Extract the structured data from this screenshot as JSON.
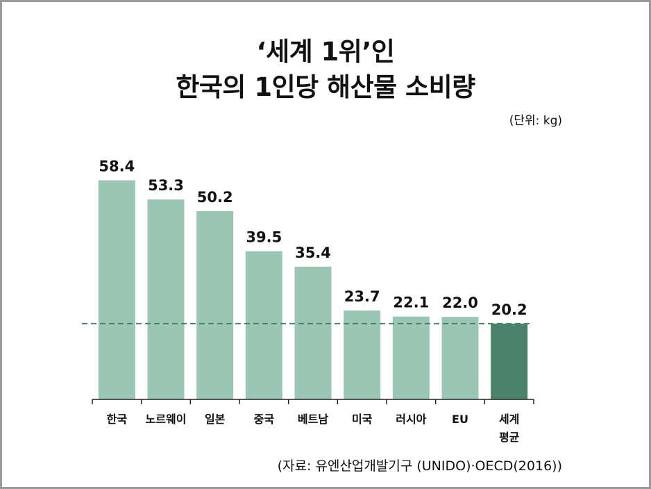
{
  "title_line1": "‘세계 1위’인",
  "title_line2": "한국의 1인당 해산물 소비량",
  "unit": "(단위: kg)",
  "source": "(자료: 유엔산업개발기구 (UNIDO)·OECD(2016))",
  "colors": {
    "bar": "#9bc6b5",
    "highlight_bar": "#4a826c",
    "reference_line": "#4a826c",
    "axis": "#222222"
  },
  "chart_data": {
    "type": "bar",
    "title": "‘세계 1위’인 한국의 1인당 해산물 소비량",
    "ylabel": "",
    "xlabel": "",
    "unit": "kg",
    "categories": [
      "한국",
      "노르웨이",
      "일본",
      "중국",
      "베트남",
      "미국",
      "러시아",
      "EU",
      "세계\n평균"
    ],
    "values": [
      58.4,
      53.3,
      50.2,
      39.5,
      35.4,
      23.7,
      22.1,
      22.0,
      20.2
    ],
    "value_labels": [
      "58.4",
      "53.3",
      "50.2",
      "39.5",
      "35.4",
      "23.7",
      "22.1",
      "22.0",
      "20.2"
    ],
    "highlight_index": 8,
    "reference_line": {
      "value": 20.2,
      "style": "dashed"
    },
    "ylim": [
      0,
      60
    ],
    "grid": false,
    "legend": "none"
  }
}
